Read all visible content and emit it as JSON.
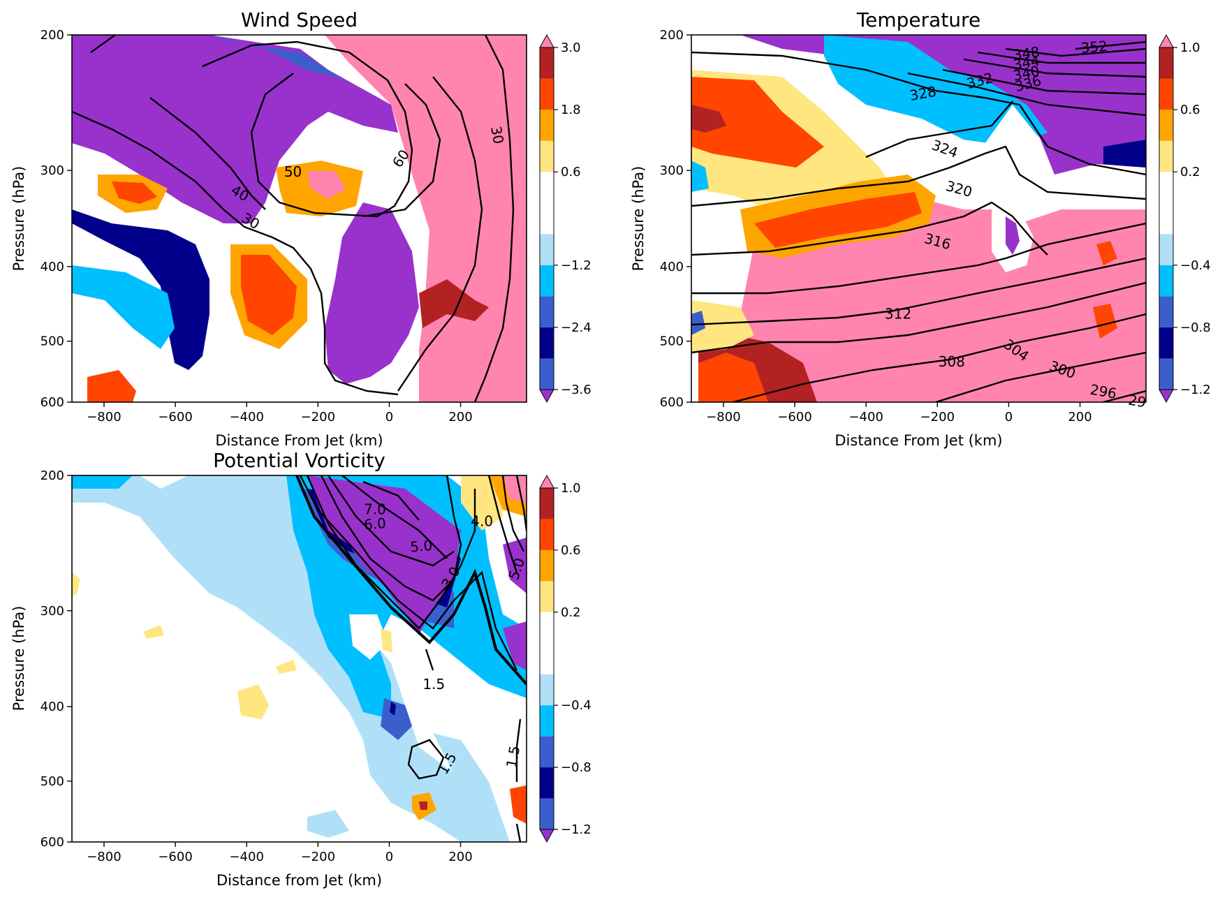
{
  "chart_data": [
    {
      "type": "heatmap",
      "title": "Wind Speed",
      "xlabel": "Distance From Jet (km)",
      "ylabel": "Pressure (hPa)",
      "xlim": [
        -890,
        385
      ],
      "ylim": [
        600,
        200
      ],
      "yscale": "log",
      "x_ticks": [
        -800,
        -600,
        -400,
        -200,
        0,
        200
      ],
      "x_tick_labels": [
        "−800",
        "−600",
        "−400",
        "−200",
        "0",
        "200"
      ],
      "y_ticks": [
        200,
        300,
        400,
        500,
        600
      ],
      "y_tick_labels": [
        "200",
        "300",
        "400",
        "500",
        "600"
      ],
      "colorbar": {
        "levels": [
          -4.2,
          -3.6,
          -3.0,
          -2.4,
          -1.8,
          -1.2,
          -0.6,
          0.6,
          1.2,
          1.8,
          2.4,
          3.0,
          3.6
        ],
        "tick_values": [
          -3.6,
          -2.4,
          -1.2,
          0.6,
          1.8,
          3.0
        ],
        "tick_labels": [
          "−3.6",
          "−2.4",
          "−1.2",
          "0.6",
          "1.8",
          "3.0"
        ],
        "extend": "both"
      },
      "contour_labels": [
        {
          "text": "30",
          "x": 300,
          "y": 270,
          "rot": 80
        },
        {
          "text": "60",
          "x": 35,
          "y": 290,
          "rot": -55
        },
        {
          "text": "50",
          "x": -270,
          "y": 302,
          "rot": 0
        },
        {
          "text": "40",
          "x": -420,
          "y": 322,
          "rot": 30
        },
        {
          "text": "30",
          "x": -390,
          "y": 350,
          "rot": 30
        }
      ]
    },
    {
      "type": "heatmap",
      "title": "Temperature",
      "xlabel": "Distance From Jet (km)",
      "ylabel": "Pressure (hPa)",
      "xlim": [
        -890,
        385
      ],
      "ylim": [
        600,
        200
      ],
      "yscale": "log",
      "x_ticks": [
        -800,
        -600,
        -400,
        -200,
        0,
        200
      ],
      "x_tick_labels": [
        "−800",
        "−600",
        "−400",
        "−200",
        "0",
        "200"
      ],
      "y_ticks": [
        200,
        300,
        400,
        500,
        600
      ],
      "y_tick_labels": [
        "200",
        "300",
        "400",
        "500",
        "600"
      ],
      "colorbar": {
        "levels": [
          -1.4,
          -1.2,
          -1.0,
          -0.8,
          -0.6,
          -0.4,
          -0.2,
          0.2,
          0.4,
          0.6,
          0.8,
          1.0,
          1.2
        ],
        "tick_values": [
          -1.2,
          -0.8,
          -0.4,
          0.2,
          0.6,
          1.0
        ],
        "tick_labels": [
          "−1.2",
          "−0.8",
          "−0.4",
          "0.2",
          "0.6",
          "1.0"
        ],
        "extend": "both"
      },
      "contour_labels": [
        {
          "text": "352",
          "x": 240,
          "y": 208,
          "rot": -5
        },
        {
          "text": "348",
          "x": 50,
          "y": 212,
          "rot": -8
        },
        {
          "text": "344",
          "x": 50,
          "y": 218,
          "rot": -10
        },
        {
          "text": "340",
          "x": 50,
          "y": 225,
          "rot": -12
        },
        {
          "text": "336",
          "x": 55,
          "y": 232,
          "rot": -15
        },
        {
          "text": "332",
          "x": -80,
          "y": 230,
          "rot": -15
        },
        {
          "text": "328",
          "x": -240,
          "y": 239,
          "rot": -10
        },
        {
          "text": "324",
          "x": -180,
          "y": 282,
          "rot": 20
        },
        {
          "text": "320",
          "x": -140,
          "y": 318,
          "rot": 15
        },
        {
          "text": "316",
          "x": -200,
          "y": 372,
          "rot": 15
        },
        {
          "text": "312",
          "x": -310,
          "y": 462,
          "rot": 0
        },
        {
          "text": "308",
          "x": -160,
          "y": 533,
          "rot": 0
        },
        {
          "text": "304",
          "x": 20,
          "y": 515,
          "rot": 35
        },
        {
          "text": "300",
          "x": 150,
          "y": 546,
          "rot": 20
        },
        {
          "text": "296",
          "x": 265,
          "y": 583,
          "rot": 10
        },
        {
          "text": "29",
          "x": 360,
          "y": 600,
          "rot": 10
        }
      ]
    },
    {
      "type": "heatmap",
      "title": "Potential Vorticity",
      "xlabel": "Distance from Jet (km)",
      "ylabel": "Pressure (hPa)",
      "xlim": [
        -890,
        385
      ],
      "ylim": [
        600,
        200
      ],
      "yscale": "log",
      "x_ticks": [
        -800,
        -600,
        -400,
        -200,
        0,
        200
      ],
      "x_tick_labels": [
        "−800",
        "−600",
        "−400",
        "−200",
        "0",
        "200"
      ],
      "y_ticks": [
        200,
        300,
        400,
        500,
        600
      ],
      "y_tick_labels": [
        "200",
        "300",
        "400",
        "500",
        "600"
      ],
      "colorbar": {
        "levels": [
          -1.4,
          -1.2,
          -1.0,
          -0.8,
          -0.6,
          -0.4,
          -0.2,
          0.2,
          0.4,
          0.6,
          0.8,
          1.0,
          1.2
        ],
        "tick_values": [
          -1.2,
          -0.8,
          -0.4,
          0.2,
          0.6,
          1.0
        ],
        "tick_labels": [
          "−1.2",
          "−0.8",
          "−0.4",
          "0.2",
          "0.6",
          "1.0"
        ],
        "extend": "both"
      },
      "contour_labels": [
        {
          "text": "7.0",
          "x": -40,
          "y": 222,
          "rot": 0
        },
        {
          "text": "6.0",
          "x": -40,
          "y": 232,
          "rot": -5
        },
        {
          "text": "5.0",
          "x": 90,
          "y": 248,
          "rot": -5
        },
        {
          "text": "4.0",
          "x": 260,
          "y": 230,
          "rot": 0
        },
        {
          "text": "3.0",
          "x": 175,
          "y": 272,
          "rot": -60
        },
        {
          "text": "5.0",
          "x": 360,
          "y": 265,
          "rot": -70
        },
        {
          "text": "1.5",
          "x": 125,
          "y": 375,
          "rot": 0
        },
        {
          "text": "1.5",
          "x": 165,
          "y": 475,
          "rot": -60
        },
        {
          "text": "1.5",
          "x": 350,
          "y": 465,
          "rot": -80
        }
      ]
    }
  ]
}
